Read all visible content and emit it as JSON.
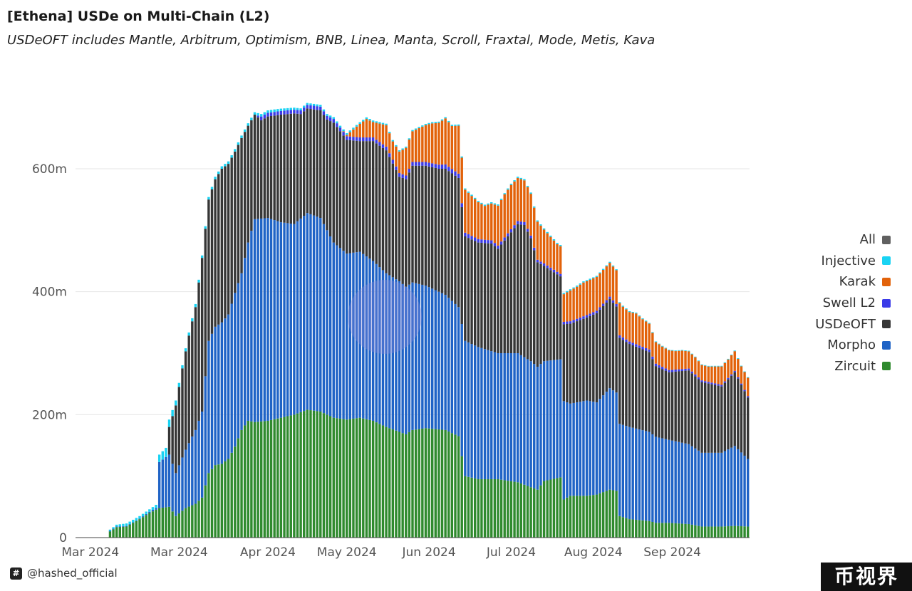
{
  "title": "[Ethena] USDe on Multi-Chain (L2)",
  "subtitle": "USDeOFT includes Mantle, Arbitrum, Optimism, BNB, Linea, Manta, Scroll, Fraxtal, Mode, Metis, Kava",
  "footer": {
    "handle": "@hashed_official",
    "icon": "hashtag-logo-icon"
  },
  "corner_mark": "币视界",
  "legend": [
    {
      "label": "All",
      "color": "#606060"
    },
    {
      "label": "Injective",
      "color": "#19d3f3"
    },
    {
      "label": "Karak",
      "color": "#e2620a"
    },
    {
      "label": "Swell L2",
      "color": "#3b3be8"
    },
    {
      "label": "USDeOFT",
      "color": "#363636"
    },
    {
      "label": "Morpho",
      "color": "#1f63c6"
    },
    {
      "label": "Zircuit",
      "color": "#2f8a2e"
    }
  ],
  "chart_data": {
    "type": "bar",
    "stacked": true,
    "ylim": [
      0,
      780
    ],
    "yticks": [
      0,
      200,
      400,
      600
    ],
    "ytick_labels": [
      "0",
      "200m",
      "400m",
      "600m"
    ],
    "x_tick_labels": [
      "Mar 2024",
      "Mar 2024",
      "Apr 2024",
      "May 2024",
      "Jun 2024",
      "Jul 2024",
      "Aug 2024",
      "Sep 2024"
    ],
    "x_tick_bar_index": [
      4,
      31,
      58,
      82,
      107,
      132,
      157,
      181
    ],
    "legend_position": "right",
    "grid": true,
    "series_order_bottom_to_top": [
      "Zircuit",
      "Morpho",
      "USDeOFT",
      "Swell L2",
      "Karak",
      "Injective"
    ],
    "anchors": {
      "Zircuit": [
        [
          0,
          0
        ],
        [
          9,
          0
        ],
        [
          10,
          10
        ],
        [
          12,
          17
        ],
        [
          15,
          18
        ],
        [
          19,
          30
        ],
        [
          22,
          40
        ],
        [
          25,
          48
        ],
        [
          28,
          50
        ],
        [
          30,
          35
        ],
        [
          33,
          48
        ],
        [
          36,
          55
        ],
        [
          38,
          65
        ],
        [
          40,
          105
        ],
        [
          42,
          118
        ],
        [
          44,
          120
        ],
        [
          46,
          128
        ],
        [
          48,
          148
        ],
        [
          50,
          175
        ],
        [
          52,
          190
        ],
        [
          54,
          188
        ],
        [
          58,
          190
        ],
        [
          62,
          195
        ],
        [
          66,
          200
        ],
        [
          70,
          208
        ],
        [
          74,
          205
        ],
        [
          78,
          195
        ],
        [
          82,
          192
        ],
        [
          86,
          195
        ],
        [
          90,
          190
        ],
        [
          94,
          180
        ],
        [
          98,
          172
        ],
        [
          100,
          168
        ],
        [
          102,
          175
        ],
        [
          106,
          178
        ],
        [
          112,
          175
        ],
        [
          116,
          165
        ],
        [
          118,
          100
        ],
        [
          122,
          95
        ],
        [
          128,
          95
        ],
        [
          134,
          90
        ],
        [
          138,
          82
        ],
        [
          140,
          78
        ],
        [
          142,
          92
        ],
        [
          147,
          98
        ],
        [
          148,
          62
        ],
        [
          150,
          68
        ],
        [
          155,
          68
        ],
        [
          158,
          70
        ],
        [
          162,
          78
        ],
        [
          164,
          76
        ],
        [
          165,
          35
        ],
        [
          168,
          30
        ],
        [
          174,
          27
        ],
        [
          176,
          24
        ],
        [
          180,
          24
        ],
        [
          186,
          22
        ],
        [
          190,
          18
        ],
        [
          196,
          18
        ],
        [
          200,
          19
        ],
        [
          204,
          18
        ]
      ],
      "Morpho": [
        [
          0,
          0
        ],
        [
          9,
          0
        ],
        [
          10,
          1
        ],
        [
          15,
          1
        ],
        [
          19,
          1
        ],
        [
          22,
          2
        ],
        [
          24,
          3
        ],
        [
          25,
          75
        ],
        [
          28,
          85
        ],
        [
          30,
          70
        ],
        [
          33,
          95
        ],
        [
          36,
          120
        ],
        [
          38,
          140
        ],
        [
          40,
          215
        ],
        [
          42,
          225
        ],
        [
          44,
          230
        ],
        [
          46,
          235
        ],
        [
          48,
          250
        ],
        [
          50,
          255
        ],
        [
          52,
          290
        ],
        [
          54,
          330
        ],
        [
          58,
          330
        ],
        [
          62,
          318
        ],
        [
          66,
          310
        ],
        [
          70,
          320
        ],
        [
          74,
          315
        ],
        [
          78,
          285
        ],
        [
          82,
          270
        ],
        [
          86,
          270
        ],
        [
          90,
          260
        ],
        [
          94,
          250
        ],
        [
          98,
          245
        ],
        [
          100,
          240
        ],
        [
          102,
          240
        ],
        [
          106,
          232
        ],
        [
          112,
          220
        ],
        [
          116,
          210
        ],
        [
          118,
          220
        ],
        [
          122,
          215
        ],
        [
          128,
          205
        ],
        [
          134,
          210
        ],
        [
          138,
          205
        ],
        [
          140,
          200
        ],
        [
          142,
          195
        ],
        [
          147,
          192
        ],
        [
          148,
          160
        ],
        [
          150,
          150
        ],
        [
          155,
          155
        ],
        [
          158,
          150
        ],
        [
          162,
          165
        ],
        [
          164,
          160
        ],
        [
          165,
          150
        ],
        [
          168,
          150
        ],
        [
          174,
          145
        ],
        [
          176,
          140
        ],
        [
          180,
          135
        ],
        [
          186,
          130
        ],
        [
          190,
          120
        ],
        [
          196,
          120
        ],
        [
          200,
          130
        ],
        [
          204,
          110
        ]
      ],
      "USDeOFT": [
        [
          0,
          0
        ],
        [
          9,
          0
        ],
        [
          10,
          0
        ],
        [
          19,
          0
        ],
        [
          22,
          0
        ],
        [
          24,
          0
        ],
        [
          25,
          0
        ],
        [
          27,
          0
        ],
        [
          28,
          45
        ],
        [
          30,
          110
        ],
        [
          32,
          145
        ],
        [
          34,
          175
        ],
        [
          36,
          200
        ],
        [
          38,
          250
        ],
        [
          40,
          230
        ],
        [
          42,
          240
        ],
        [
          44,
          250
        ],
        [
          46,
          245
        ],
        [
          48,
          230
        ],
        [
          50,
          220
        ],
        [
          52,
          190
        ],
        [
          54,
          170
        ],
        [
          56,
          160
        ],
        [
          58,
          165
        ],
        [
          62,
          175
        ],
        [
          66,
          180
        ],
        [
          68,
          170
        ],
        [
          70,
          170
        ],
        [
          74,
          175
        ],
        [
          76,
          180
        ],
        [
          78,
          195
        ],
        [
          82,
          185
        ],
        [
          86,
          180
        ],
        [
          90,
          195
        ],
        [
          94,
          200
        ],
        [
          98,
          170
        ],
        [
          100,
          175
        ],
        [
          102,
          190
        ],
        [
          106,
          195
        ],
        [
          110,
          200
        ],
        [
          112,
          205
        ],
        [
          116,
          210
        ],
        [
          118,
          170
        ],
        [
          122,
          170
        ],
        [
          126,
          175
        ],
        [
          128,
          170
        ],
        [
          134,
          210
        ],
        [
          136,
          215
        ],
        [
          138,
          200
        ],
        [
          140,
          170
        ],
        [
          142,
          155
        ],
        [
          147,
          135
        ],
        [
          148,
          125
        ],
        [
          150,
          130
        ],
        [
          155,
          135
        ],
        [
          158,
          145
        ],
        [
          162,
          145
        ],
        [
          164,
          140
        ],
        [
          165,
          140
        ],
        [
          168,
          135
        ],
        [
          174,
          130
        ],
        [
          176,
          115
        ],
        [
          180,
          110
        ],
        [
          186,
          120
        ],
        [
          190,
          115
        ],
        [
          196,
          108
        ],
        [
          200,
          120
        ],
        [
          204,
          100
        ]
      ],
      "Swell L2": [
        [
          0,
          0
        ],
        [
          40,
          0
        ],
        [
          42,
          0
        ],
        [
          54,
          0
        ],
        [
          56,
          6
        ],
        [
          100,
          6
        ],
        [
          106,
          6
        ],
        [
          112,
          7
        ],
        [
          116,
          7
        ],
        [
          118,
          6
        ],
        [
          128,
          5
        ],
        [
          134,
          5
        ],
        [
          140,
          4
        ],
        [
          150,
          4
        ],
        [
          165,
          4
        ],
        [
          176,
          4
        ],
        [
          186,
          3
        ],
        [
          204,
          2
        ]
      ],
      "Karak": [
        [
          0,
          0
        ],
        [
          80,
          0
        ],
        [
          82,
          2
        ],
        [
          84,
          12
        ],
        [
          86,
          22
        ],
        [
          88,
          30
        ],
        [
          90,
          25
        ],
        [
          94,
          35
        ],
        [
          96,
          30
        ],
        [
          98,
          35
        ],
        [
          100,
          45
        ],
        [
          102,
          50
        ],
        [
          104,
          55
        ],
        [
          106,
          60
        ],
        [
          108,
          65
        ],
        [
          110,
          68
        ],
        [
          112,
          75
        ],
        [
          114,
          70
        ],
        [
          116,
          78
        ],
        [
          118,
          70
        ],
        [
          120,
          65
        ],
        [
          122,
          60
        ],
        [
          124,
          55
        ],
        [
          126,
          60
        ],
        [
          128,
          65
        ],
        [
          130,
          70
        ],
        [
          132,
          72
        ],
        [
          134,
          70
        ],
        [
          136,
          68
        ],
        [
          138,
          68
        ],
        [
          140,
          62
        ],
        [
          142,
          55
        ],
        [
          144,
          50
        ],
        [
          146,
          45
        ],
        [
          148,
          45
        ],
        [
          150,
          50
        ],
        [
          152,
          52
        ],
        [
          154,
          55
        ],
        [
          156,
          55
        ],
        [
          158,
          55
        ],
        [
          160,
          55
        ],
        [
          162,
          55
        ],
        [
          164,
          55
        ],
        [
          166,
          50
        ],
        [
          168,
          48
        ],
        [
          170,
          50
        ],
        [
          172,
          45
        ],
        [
          174,
          42
        ],
        [
          176,
          35
        ],
        [
          178,
          33
        ],
        [
          180,
          32
        ],
        [
          182,
          30
        ],
        [
          184,
          30
        ],
        [
          186,
          28
        ],
        [
          188,
          28
        ],
        [
          190,
          25
        ],
        [
          192,
          25
        ],
        [
          196,
          30
        ],
        [
          198,
          30
        ],
        [
          200,
          32
        ],
        [
          202,
          28
        ],
        [
          204,
          30
        ]
      ],
      "Injective": [
        [
          0,
          0
        ],
        [
          9,
          0
        ],
        [
          10,
          2
        ],
        [
          12,
          3
        ],
        [
          15,
          4
        ],
        [
          19,
          4
        ],
        [
          22,
          4
        ],
        [
          24,
          5
        ],
        [
          25,
          12
        ],
        [
          27,
          15
        ],
        [
          28,
          12
        ],
        [
          30,
          8
        ],
        [
          32,
          5
        ],
        [
          34,
          5
        ],
        [
          36,
          5
        ],
        [
          38,
          4
        ],
        [
          40,
          4
        ],
        [
          50,
          4
        ],
        [
          60,
          4
        ],
        [
          70,
          3
        ],
        [
          80,
          3
        ],
        [
          100,
          2
        ],
        [
          120,
          2
        ],
        [
          150,
          2
        ],
        [
          180,
          1
        ],
        [
          204,
          1
        ]
      ]
    }
  }
}
